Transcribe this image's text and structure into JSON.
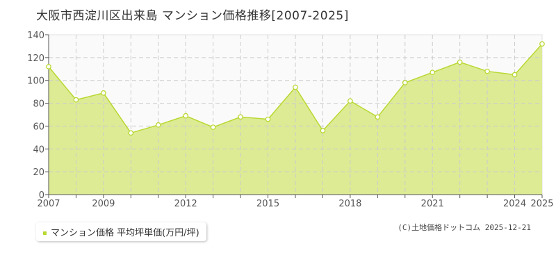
{
  "title": "大阪市西淀川区出来島 マンション価格推移[2007-2025]",
  "legend_label": "マンション価格 平均坪単価(万円/坪)",
  "footer": "(C)土地価格ドットコム 2025-12-21",
  "colors": {
    "fill": "#dceb94",
    "line": "#b8d832",
    "grid": "#cccccc"
  },
  "chart_data": {
    "type": "area",
    "title": "大阪市西淀川区出来島 マンション価格推移[2007-2025]",
    "xlabel": "",
    "ylabel": "",
    "x": [
      2007,
      2008,
      2009,
      2010,
      2011,
      2012,
      2013,
      2014,
      2015,
      2016,
      2017,
      2018,
      2019,
      2020,
      2021,
      2022,
      2023,
      2024,
      2025
    ],
    "series": [
      {
        "name": "マンション価格 平均坪単価(万円/坪)",
        "values": [
          112,
          83,
          89,
          54,
          61,
          69,
          59,
          68,
          66,
          94,
          56,
          82,
          68,
          98,
          107,
          116,
          108,
          105,
          132
        ]
      }
    ],
    "xticks": [
      2007,
      2009,
      2012,
      2015,
      2018,
      2021,
      2024,
      2025
    ],
    "yticks": [
      0,
      20,
      40,
      60,
      80,
      100,
      120,
      140
    ],
    "ylim": [
      0,
      140
    ],
    "xlim": [
      2007,
      2025
    ],
    "grid": true,
    "legend": "bottom-left"
  }
}
